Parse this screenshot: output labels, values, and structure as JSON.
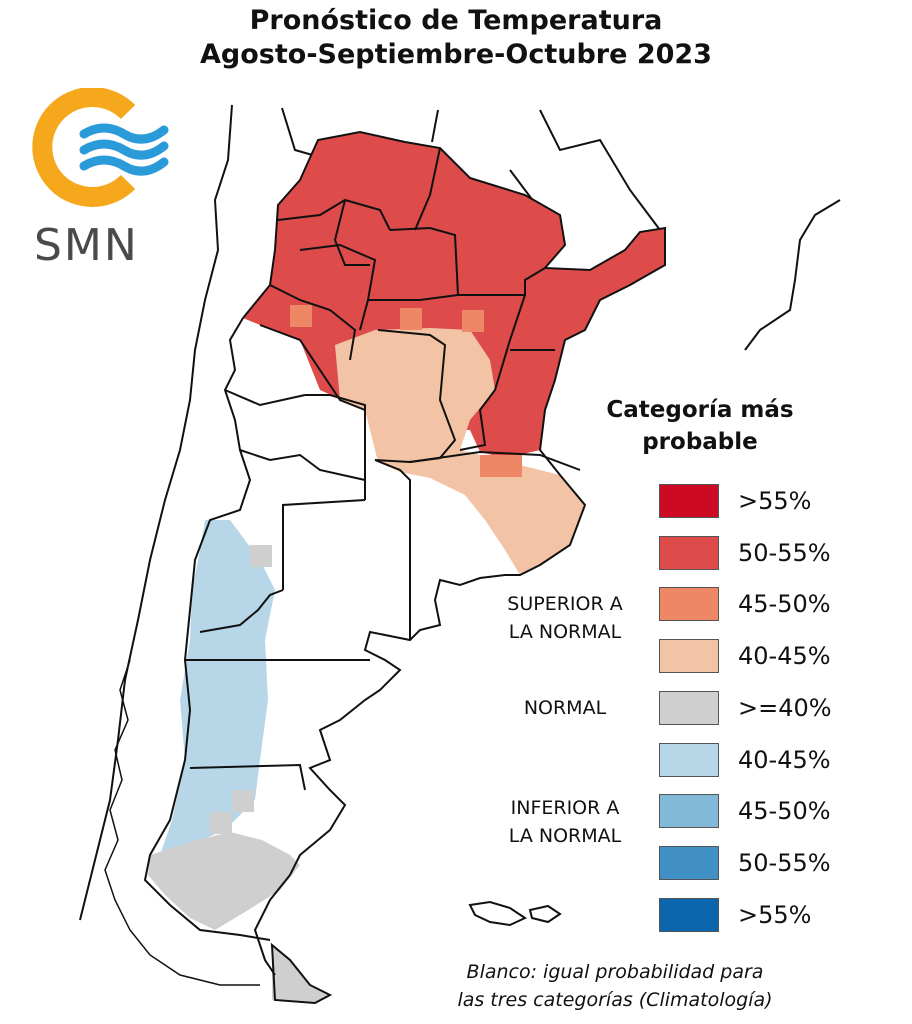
{
  "title": {
    "line1": "Pronóstico de Temperatura",
    "line2": "Agosto-Septiembre-Octubre 2023"
  },
  "logo": {
    "text": "SMN",
    "colors": {
      "sun": "#f6a81c",
      "waves": "#2b9ad8",
      "text": "#4a4a4a"
    }
  },
  "legend": {
    "title_line1": "Categoría más",
    "title_line2": "probable",
    "groups": {
      "superior": [
        "SUPERIOR A",
        "LA NORMAL"
      ],
      "normal": "NORMAL",
      "inferior": [
        "INFERIOR A",
        "LA NORMAL"
      ]
    },
    "items": [
      {
        "label": ">55%",
        "color": "#cc0a24"
      },
      {
        "label": "50-55%",
        "color": "#de4b4b"
      },
      {
        "label": "45-50%",
        "color": "#ee8766"
      },
      {
        "label": "40-45%",
        "color": "#f3c3a6"
      },
      {
        "label": ">=40%",
        "color": "#cfcfcf"
      },
      {
        "label": "40-45%",
        "color": "#b7d7e8"
      },
      {
        "label": "45-50%",
        "color": "#82b9d9"
      },
      {
        "label": "50-55%",
        "color": "#4190c6"
      },
      {
        "label": ">55%",
        "color": "#0a65ad"
      }
    ]
  },
  "note": {
    "line1": "Blanco: igual probabilidad para",
    "line2": "las tres categorías (Climatología)"
  }
}
